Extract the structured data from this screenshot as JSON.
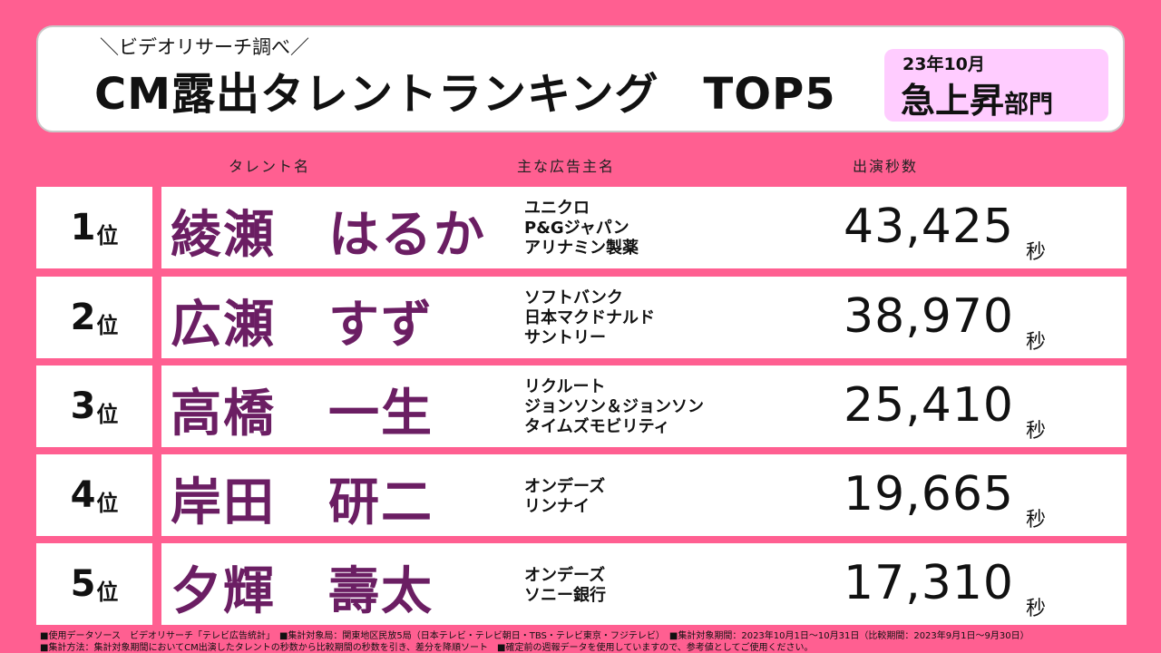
{
  "header": {
    "source_title": "＼ビデオリサーチ調べ／",
    "main_title": "CM露出タレントランキング　TOP5",
    "period": "23年10月",
    "category_main": "急上昇",
    "category_suffix": "部門"
  },
  "columns": {
    "talent": "タレント名",
    "advertisers": "主な広告主名",
    "seconds": "出演秒数"
  },
  "rank_suffix": "位",
  "seconds_unit": "秒",
  "ranking": [
    {
      "rank": "1",
      "name": "綾瀬　はるか",
      "advertisers": [
        "ユニクロ",
        "P&Gジャパン",
        "アリナミン製薬"
      ],
      "seconds": "43,425"
    },
    {
      "rank": "2",
      "name": "広瀬　すず",
      "advertisers": [
        "ソフトバンク",
        "日本マクドナルド",
        "サントリー"
      ],
      "seconds": "38,970"
    },
    {
      "rank": "3",
      "name": "高橋　一生",
      "advertisers": [
        "リクルート",
        "ジョンソン＆ジョンソン",
        "タイムズモビリティ"
      ],
      "seconds": "25,410"
    },
    {
      "rank": "4",
      "name": "岸田　研二",
      "advertisers": [
        "オンデーズ",
        "リンナイ"
      ],
      "seconds": "19,665"
    },
    {
      "rank": "5",
      "name": "夕輝　壽太",
      "advertisers": [
        "オンデーズ",
        "ソニー銀行"
      ],
      "seconds": "17,310"
    }
  ],
  "footnotes": [
    "■使用データソース　ビデオリサーチ「テレビ広告統計」　■集計対象局：関東地区民放5局（日本テレビ・テレビ朝日・TBS・テレビ東京・フジテレビ）　■集計対象期間：2023年10月1日～10月31日（比較期間：2023年9月1日～9月30日）",
    "■集計方法：集計対象期間においてCM出演したタレントの秒数から比較期間の秒数を引き、差分を降順ソート　■確定前の週報データを使用していますので、参考値としてご使用ください。"
  ],
  "colors": {
    "background": "#ff5f91",
    "name_color": "#6b1e63",
    "category_box": "#ffccff"
  }
}
